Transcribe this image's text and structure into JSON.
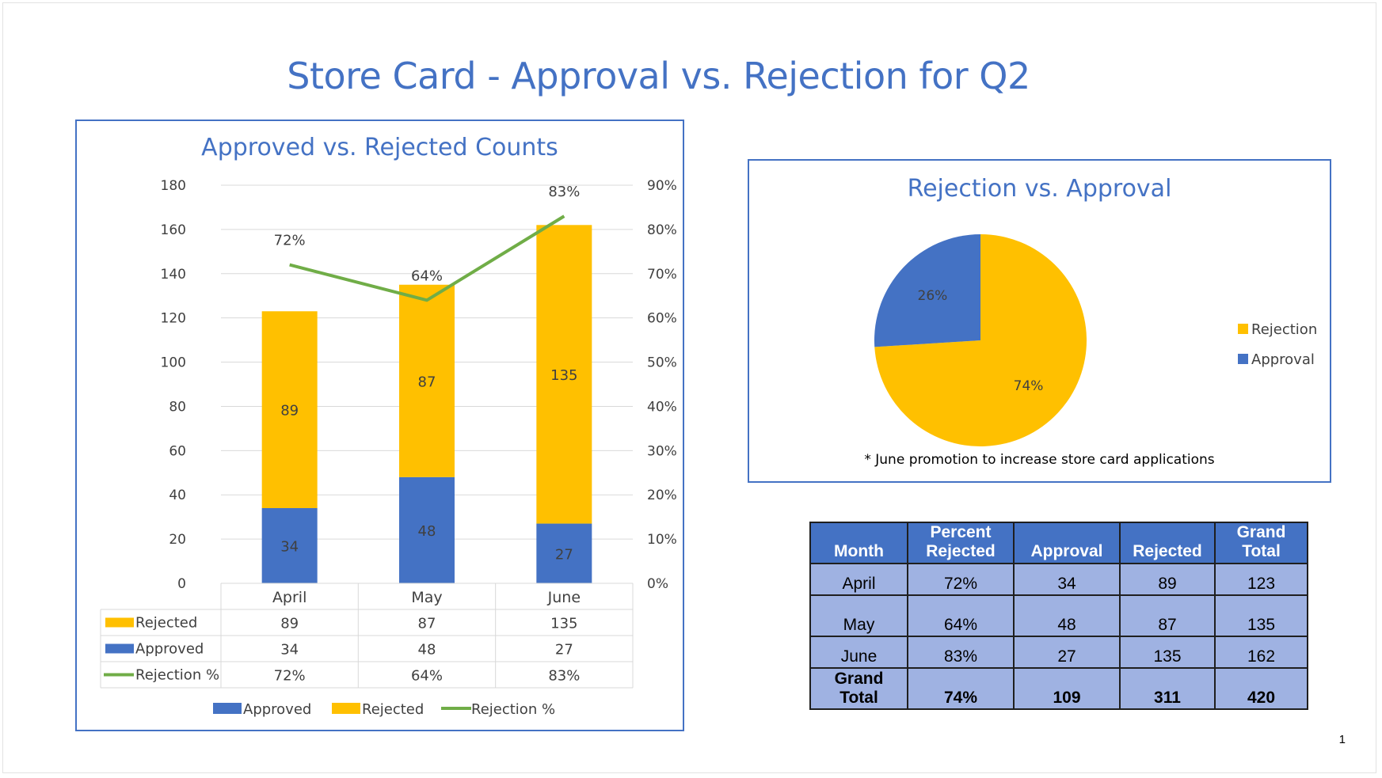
{
  "slide": {
    "title": "Store Card - Approval vs. Rejection for Q2",
    "page_number": "1"
  },
  "colors": {
    "approved": "#4472C4",
    "rejected": "#FFC000",
    "rejection_line": "#70AD47",
    "title": "#4472C4"
  },
  "chart_data": [
    {
      "type": "bar",
      "stacked": true,
      "title": "Approved vs. Rejected Counts",
      "categories": [
        "April",
        "May",
        "June"
      ],
      "series": [
        {
          "name": "Approved",
          "values": [
            34,
            48,
            27
          ],
          "axis": "left",
          "labels": [
            "34",
            "48",
            "27"
          ]
        },
        {
          "name": "Rejected",
          "values": [
            89,
            87,
            135
          ],
          "axis": "left",
          "labels": [
            "89",
            "87",
            "135"
          ]
        },
        {
          "name": "Rejection %",
          "type": "line",
          "values": [
            72,
            64,
            83
          ],
          "axis": "right",
          "labels": [
            "72%",
            "64%",
            "83%"
          ]
        }
      ],
      "ylim": [
        0,
        180
      ],
      "yticks": [
        "0",
        "20",
        "40",
        "60",
        "80",
        "100",
        "120",
        "140",
        "160",
        "180"
      ],
      "y2lim": [
        0,
        90
      ],
      "y2ticks": [
        "0%",
        "10%",
        "20%",
        "30%",
        "40%",
        "50%",
        "60%",
        "70%",
        "80%",
        "90%"
      ],
      "data_table": [
        {
          "label": "Rejected",
          "values": [
            "89",
            "87",
            "135"
          ]
        },
        {
          "label": "Approved",
          "values": [
            "34",
            "48",
            "27"
          ]
        },
        {
          "label": "Rejection %",
          "values": [
            "72%",
            "64%",
            "83%"
          ]
        }
      ],
      "legend": [
        "Approved",
        "Rejected",
        "Rejection %"
      ],
      "legend_position": "bottom",
      "grid": true
    },
    {
      "type": "pie",
      "title": "Rejection vs. Approval",
      "labels": [
        "Rejection",
        "Approval"
      ],
      "values": [
        74,
        26
      ],
      "value_labels": [
        "74%",
        "26%"
      ],
      "legend_position": "right",
      "footnote": "* June promotion to increase store card applications"
    }
  ],
  "table": {
    "headers": [
      [
        "Month"
      ],
      [
        "Percent",
        "Rejected"
      ],
      [
        "Approval"
      ],
      [
        "Rejected"
      ],
      [
        "Grand",
        "Total"
      ]
    ],
    "rows": [
      [
        "April",
        "72%",
        "34",
        "89",
        "123"
      ],
      [
        "May",
        "64%",
        "48",
        "87",
        "135"
      ],
      [
        "June",
        "83%",
        "27",
        "135",
        "162"
      ]
    ],
    "total_label": [
      "Grand",
      "Total"
    ],
    "total_row": [
      "74%",
      "109",
      "311",
      "420"
    ]
  }
}
